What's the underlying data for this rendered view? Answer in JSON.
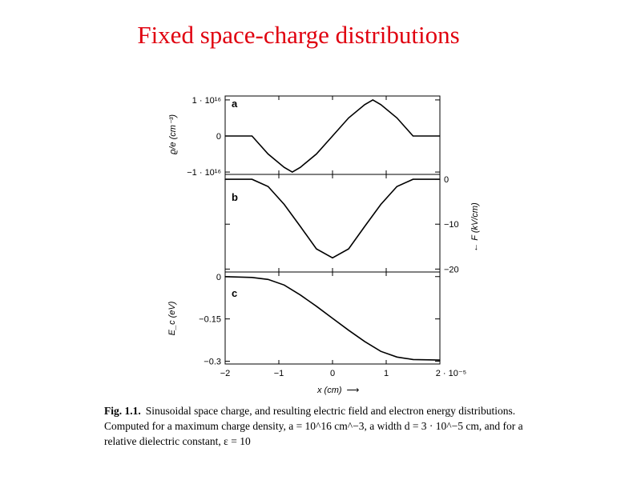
{
  "slide": {
    "title": "Fixed space-charge distributions"
  },
  "caption": {
    "label": "Fig. 1.1.",
    "text": "Sinusoidal space charge, and resulting electric field and electron energy distributions. Computed for a maximum charge density, a = 10^16 cm^−3, a width d = 3 · 10^−5 cm, and for a relative dielectric constant, ε = 10"
  },
  "chart_data": [
    {
      "type": "line",
      "panel": "a",
      "ylabel": "ϱ/e (cm⁻³)",
      "x_range": [
        -2,
        2
      ],
      "y_range": [
        -1e+16,
        1e+16
      ],
      "yticks": [
        "1 · 10¹⁶",
        "0",
        "−1 · 10¹⁶"
      ],
      "x": [
        -2,
        -1.5,
        -1.2,
        -0.9,
        -0.75,
        -0.6,
        -0.3,
        0,
        0.3,
        0.6,
        0.75,
        0.9,
        1.2,
        1.5,
        2
      ],
      "values": [
        0,
        0,
        -5000000000000000.0,
        -8700000000000000.0,
        -1e+16,
        -8700000000000000.0,
        -5000000000000000.0,
        0,
        5000000000000000.0,
        8700000000000000.0,
        1e+16,
        8700000000000000.0,
        5000000000000000.0,
        0,
        0
      ]
    },
    {
      "type": "line",
      "panel": "b",
      "ylabel": "F (kV/cm)",
      "x_range": [
        -2,
        2
      ],
      "y_range": [
        -20,
        0
      ],
      "yticks": [
        "0",
        "−10",
        "−20"
      ],
      "x": [
        -2,
        -1.5,
        -1.2,
        -0.9,
        -0.6,
        -0.3,
        0,
        0.3,
        0.6,
        0.9,
        1.2,
        1.5,
        2
      ],
      "values": [
        0,
        0,
        -1.6,
        -5.6,
        -10.5,
        -15.5,
        -17.5,
        -15.5,
        -10.5,
        -5.6,
        -1.6,
        0,
        0
      ]
    },
    {
      "type": "line",
      "panel": "c",
      "ylabel": "E_c (eV)",
      "xlabel": "x (cm)",
      "x_range": [
        -2,
        2
      ],
      "y_range": [
        -0.3,
        0
      ],
      "xticks": [
        "−2",
        "−1",
        "0",
        "1",
        "2 · 10⁻⁵"
      ],
      "yticks": [
        "0",
        "−0.15",
        "−0.3"
      ],
      "x": [
        -2,
        -1.5,
        -1.2,
        -0.9,
        -0.6,
        -0.3,
        0,
        0.3,
        0.6,
        0.9,
        1.2,
        1.5,
        2
      ],
      "values": [
        0,
        -0.003,
        -0.01,
        -0.03,
        -0.065,
        -0.105,
        -0.148,
        -0.19,
        -0.23,
        -0.265,
        -0.285,
        -0.294,
        -0.296
      ]
    }
  ]
}
